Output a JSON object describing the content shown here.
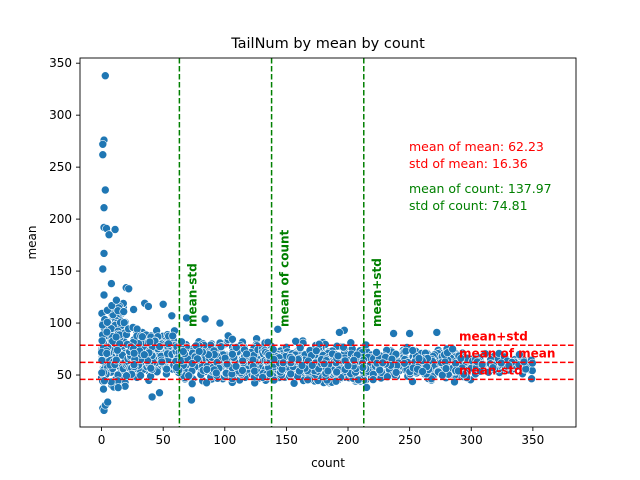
{
  "chart_data": {
    "type": "scatter",
    "title": "TailNum by mean by count",
    "xlabel": "count",
    "ylabel": "mean",
    "xlim": [
      -17.5,
      385
    ],
    "ylim": [
      0,
      355
    ],
    "xticks": [
      0,
      50,
      100,
      150,
      200,
      250,
      300,
      350
    ],
    "yticks": [
      50,
      100,
      150,
      200,
      250,
      300,
      350
    ],
    "grid": false,
    "point_color": "#1f77b4",
    "point_edge_color": "#ffffff",
    "reference_lines": {
      "vertical": [
        {
          "value": 63.16,
          "label": "mean-std",
          "color": "#008000"
        },
        {
          "value": 137.97,
          "label": "mean of count",
          "color": "#008000"
        },
        {
          "value": 212.78,
          "label": "mean+std",
          "color": "#008000"
        }
      ],
      "horizontal": [
        {
          "value": 78.59,
          "label": "mean+std",
          "color": "#ff0000"
        },
        {
          "value": 62.23,
          "label": "mean of mean",
          "color": "#ff0000"
        },
        {
          "value": 45.87,
          "label": "mean-std",
          "color": "#ff0000"
        }
      ]
    },
    "annotations": {
      "mean_stats": [
        "mean of mean: 62.23",
        "std of mean: 16.36"
      ],
      "count_stats": [
        "mean of count: 137.97",
        "std of count: 74.81"
      ],
      "mean_color": "#ff0000",
      "count_color": "#008000"
    },
    "outliers": [
      {
        "x": 3,
        "y": 338
      },
      {
        "x": 2,
        "y": 276
      },
      {
        "x": 1,
        "y": 272
      },
      {
        "x": 1,
        "y": 262
      },
      {
        "x": 3,
        "y": 228
      },
      {
        "x": 2,
        "y": 211
      },
      {
        "x": 2,
        "y": 192
      },
      {
        "x": 4,
        "y": 191
      },
      {
        "x": 11,
        "y": 190
      },
      {
        "x": 6,
        "y": 185
      },
      {
        "x": 2,
        "y": 167
      },
      {
        "x": 1,
        "y": 152
      },
      {
        "x": 8,
        "y": 138
      },
      {
        "x": 20,
        "y": 134
      },
      {
        "x": 22,
        "y": 133
      },
      {
        "x": 2,
        "y": 127
      },
      {
        "x": 12,
        "y": 122
      },
      {
        "x": 35,
        "y": 119
      },
      {
        "x": 50,
        "y": 118
      },
      {
        "x": 38,
        "y": 116
      },
      {
        "x": 26,
        "y": 113
      },
      {
        "x": 18,
        "y": 111
      },
      {
        "x": 57,
        "y": 107
      },
      {
        "x": 69,
        "y": 105
      },
      {
        "x": 84,
        "y": 104
      },
      {
        "x": 96,
        "y": 100
      },
      {
        "x": 143,
        "y": 94
      },
      {
        "x": 197,
        "y": 93
      },
      {
        "x": 193,
        "y": 91
      },
      {
        "x": 237,
        "y": 90
      },
      {
        "x": 250,
        "y": 90
      },
      {
        "x": 272,
        "y": 91
      },
      {
        "x": 41,
        "y": 29
      },
      {
        "x": 47,
        "y": 33
      },
      {
        "x": 73,
        "y": 26
      },
      {
        "x": 1,
        "y": 18
      },
      {
        "x": 2,
        "y": 16
      },
      {
        "x": 3,
        "y": 21
      },
      {
        "x": 5,
        "y": 24
      }
    ],
    "bulk_cloud": {
      "description_free": true,
      "seed": 7,
      "bands": [
        {
          "x_range": [
            0,
            20
          ],
          "y_range": [
            30,
            125
          ],
          "count": 260
        },
        {
          "x_range": [
            20,
            60
          ],
          "y_range": [
            38,
            100
          ],
          "count": 220
        },
        {
          "x_range": [
            60,
            130
          ],
          "y_range": [
            38,
            90
          ],
          "count": 420
        },
        {
          "x_range": [
            130,
            220
          ],
          "y_range": [
            36,
            86
          ],
          "count": 520
        },
        {
          "x_range": [
            220,
            300
          ],
          "y_range": [
            40,
            82
          ],
          "count": 330
        },
        {
          "x_range": [
            300,
            350
          ],
          "y_range": [
            45,
            75
          ],
          "count": 90
        }
      ]
    }
  }
}
